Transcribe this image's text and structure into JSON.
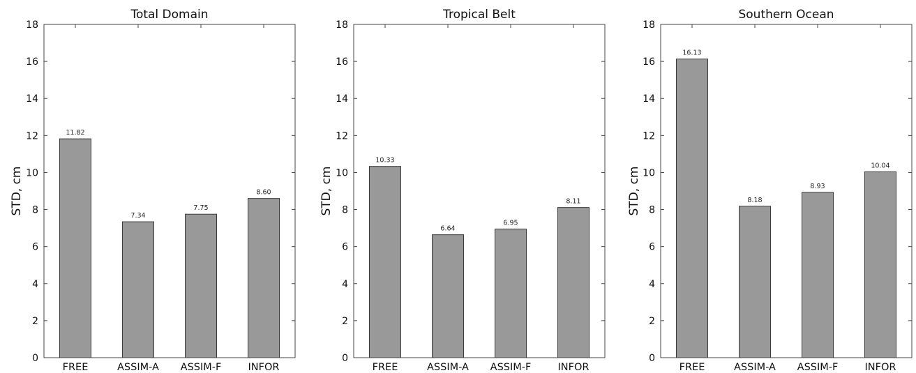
{
  "chart_data": [
    {
      "type": "bar",
      "title": "Total Domain",
      "ylabel": "STD, cm",
      "xlabel": "",
      "categories": [
        "FREE",
        "ASSIM-A",
        "ASSIM-F",
        "INFOR"
      ],
      "values": [
        11.82,
        7.34,
        7.75,
        8.6
      ],
      "value_labels": [
        "11.82",
        "7.34",
        "7.75",
        "8.60"
      ],
      "ylim": [
        0,
        18
      ],
      "yticks": [
        0,
        2,
        4,
        6,
        8,
        10,
        12,
        14,
        16,
        18
      ],
      "grid": false,
      "legend": "none",
      "bar_color": "#999999"
    },
    {
      "type": "bar",
      "title": "Tropical Belt",
      "ylabel": "STD, cm",
      "xlabel": "",
      "categories": [
        "FREE",
        "ASSIM-A",
        "ASSIM-F",
        "INFOR"
      ],
      "values": [
        10.33,
        6.64,
        6.95,
        8.11
      ],
      "value_labels": [
        "10.33",
        "6.64",
        "6.95",
        "8.11"
      ],
      "ylim": [
        0,
        18
      ],
      "yticks": [
        0,
        2,
        4,
        6,
        8,
        10,
        12,
        14,
        16,
        18
      ],
      "grid": false,
      "legend": "none",
      "bar_color": "#999999"
    },
    {
      "type": "bar",
      "title": "Southern Ocean",
      "ylabel": "STD, cm",
      "xlabel": "",
      "categories": [
        "FREE",
        "ASSIM-A",
        "ASSIM-F",
        "INFOR"
      ],
      "values": [
        16.13,
        8.18,
        8.93,
        10.04
      ],
      "value_labels": [
        "16.13",
        "8.18",
        "8.93",
        "10.04"
      ],
      "ylim": [
        0,
        18
      ],
      "yticks": [
        0,
        2,
        4,
        6,
        8,
        10,
        12,
        14,
        16,
        18
      ],
      "grid": false,
      "legend": "none",
      "bar_color": "#999999"
    }
  ]
}
